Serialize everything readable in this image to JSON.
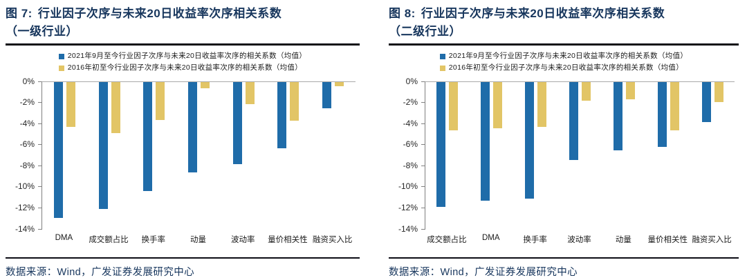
{
  "figures": [
    {
      "label": "图 7:",
      "title": "行业因子次序与未来20日收益率次序相关系数",
      "subtitle": "（一级行业）",
      "source": "数据来源：Wind，广发证券发展研究中心"
    },
    {
      "label": "图 8:",
      "title": "行业因子次序与未来20日收益率次序相关系数",
      "subtitle": "（二级行业）",
      "source": "数据来源：Wind，广发证券发展研究中心"
    }
  ],
  "colors": {
    "title_navy": "#17365d",
    "series_blue": "#1f6ca9",
    "series_gold": "#e2c566",
    "axis_line": "#7f7f7f",
    "zero_gridline": "#a9a9a9",
    "divider_black": "#0b0b14"
  },
  "chart_data": [
    {
      "type": "bar",
      "title": "图 7: 行业因子次序与未来20日收益率次序相关系数（一级行业）",
      "categories": [
        "DMA",
        "成交额占比",
        "换手率",
        "动量",
        "波动率",
        "量价相关性",
        "融资买入比"
      ],
      "series": [
        {
          "name": "2021年9月至今行业因子次序与未来20日收益率次序的相关系数（均值）",
          "color": "#1f6ca9",
          "values": [
            -12.9,
            -12.1,
            -10.4,
            -8.6,
            -7.8,
            -6.3,
            -2.5
          ]
        },
        {
          "name": "2016年初至今行业因子次序与未来20日收益率次序的相关系数（均值）",
          "color": "#e2c566",
          "values": [
            -4.3,
            -4.9,
            -3.6,
            -0.6,
            -2.1,
            -3.7,
            -0.4
          ]
        }
      ],
      "xlabel": "",
      "ylabel": "",
      "ylim": [
        -14,
        0
      ],
      "ytick_step": 2,
      "ytick_suffix": "%",
      "grid": false,
      "legend_position": "top"
    },
    {
      "type": "bar",
      "title": "图 8: 行业因子次序与未来20日收益率次序相关系数（二级行业）",
      "categories": [
        "成交额占比",
        "DMA",
        "换手率",
        "波动率",
        "动量",
        "量价相关性",
        "融资买入比"
      ],
      "series": [
        {
          "name": "2021年9月至今行业因子次序与未来20日收益率次序的相关系数（均值）",
          "color": "#1f6ca9",
          "values": [
            -11.9,
            -11.3,
            -11.1,
            -7.4,
            -6.5,
            -6.2,
            -3.8
          ]
        },
        {
          "name": "2016年初至今行业因子次序与未来20日收益率次序的相关系数（均值）",
          "color": "#e2c566",
          "values": [
            -4.6,
            -4.4,
            -4.3,
            -1.8,
            -1.7,
            -4.6,
            -1.9
          ]
        }
      ],
      "xlabel": "",
      "ylabel": "",
      "ylim": [
        -14,
        0
      ],
      "ytick_step": 2,
      "ytick_suffix": "%",
      "grid": false,
      "legend_position": "top"
    }
  ]
}
